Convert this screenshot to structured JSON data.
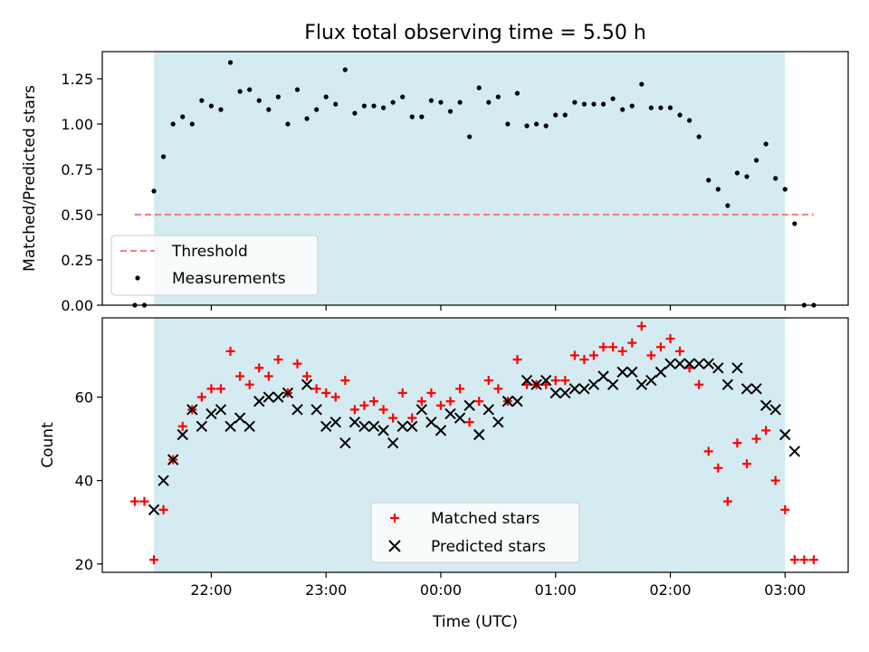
{
  "title": "Flux total observing time = 5.50 h",
  "colors": {
    "shade": "#d4ebf1",
    "threshold": "#f08080",
    "measurement": "#000000",
    "matched": "#ff0000",
    "predicted": "#000000"
  },
  "chart_data": [
    {
      "type": "scatter",
      "ylabel": "Matched/Predicted stars",
      "ylim": [
        0,
        1.4
      ],
      "yticks": [
        0.0,
        0.25,
        0.5,
        0.75,
        1.0,
        1.25
      ],
      "ytick_labels": [
        "0.00",
        "0.25",
        "0.50",
        "0.75",
        "1.00",
        "1.25"
      ],
      "xlim_hours": [
        -2.95,
        3.55
      ],
      "shaded_interval": [
        "21:30",
        "03:00"
      ],
      "threshold": {
        "name": "Threshold",
        "value": 0.5,
        "x_range": [
          "21:20",
          "03:15"
        ]
      },
      "legend": {
        "placement": "lower left",
        "entries": [
          "Threshold",
          "Measurements"
        ]
      },
      "series": [
        {
          "name": "Measurements",
          "x": [
            -2.6667,
            -2.5833,
            -2.5,
            -2.4167,
            -2.3333,
            -2.25,
            -2.1667,
            -2.0833,
            -2.0,
            -1.9167,
            -1.8333,
            -1.75,
            -1.6667,
            -1.5833,
            -1.5,
            -1.4167,
            -1.3333,
            -1.25,
            -1.1667,
            -1.0833,
            -1.0,
            -0.9167,
            -0.8333,
            -0.75,
            -0.6667,
            -0.5833,
            -0.5,
            -0.4167,
            -0.3333,
            -0.25,
            -0.1667,
            -0.0833,
            0.0,
            0.0833,
            0.1667,
            0.25,
            0.3333,
            0.4167,
            0.5,
            0.5833,
            0.6667,
            0.75,
            0.8333,
            0.9167,
            1.0,
            1.0833,
            1.1667,
            1.25,
            1.3333,
            1.4167,
            1.5,
            1.5833,
            1.6667,
            1.75,
            1.8333,
            1.9167,
            2.0,
            2.0833,
            2.1667,
            2.25,
            2.3333,
            2.4167,
            2.5,
            2.5833,
            2.6667,
            2.75,
            2.8333,
            2.9167,
            3.0,
            3.0833,
            3.1667,
            3.25
          ],
          "y": [
            0.0,
            0.0,
            0.63,
            0.82,
            1.0,
            1.04,
            1.0,
            1.13,
            1.1,
            1.08,
            1.34,
            1.18,
            1.19,
            1.13,
            1.08,
            1.15,
            1.0,
            1.19,
            1.03,
            1.08,
            1.15,
            1.11,
            1.3,
            1.06,
            1.1,
            1.1,
            1.09,
            1.12,
            1.15,
            1.04,
            1.04,
            1.13,
            1.12,
            1.07,
            1.12,
            0.93,
            1.2,
            1.12,
            1.15,
            1.0,
            1.17,
            0.99,
            1.0,
            0.99,
            1.05,
            1.05,
            1.12,
            1.11,
            1.11,
            1.11,
            1.14,
            1.08,
            1.1,
            1.22,
            1.09,
            1.09,
            1.09,
            1.05,
            1.02,
            0.93,
            0.69,
            0.64,
            0.55,
            0.73,
            0.71,
            0.8,
            0.89,
            0.7,
            0.64,
            0.45,
            0.0,
            0.0
          ]
        }
      ]
    },
    {
      "type": "scatter",
      "xlabel": "Time (UTC)",
      "ylabel": "Count",
      "ylim": [
        18,
        79
      ],
      "yticks": [
        20,
        40,
        60
      ],
      "ytick_labels": [
        "20",
        "40",
        "60"
      ],
      "xlim_hours": [
        -2.95,
        3.55
      ],
      "xticks_hours": [
        -2,
        -1,
        0,
        1,
        2,
        3
      ],
      "xtick_labels": [
        "22:00",
        "23:00",
        "00:00",
        "01:00",
        "02:00",
        "03:00"
      ],
      "shaded_interval": [
        "21:30",
        "03:00"
      ],
      "legend": {
        "placement": "lower center",
        "entries": [
          "Matched stars",
          "Predicted stars"
        ]
      },
      "series": [
        {
          "name": "Matched stars",
          "marker": "plus",
          "x": [
            -2.6667,
            -2.5833,
            -2.5,
            -2.4167,
            -2.3333,
            -2.25,
            -2.1667,
            -2.0833,
            -2.0,
            -1.9167,
            -1.8333,
            -1.75,
            -1.6667,
            -1.5833,
            -1.5,
            -1.4167,
            -1.3333,
            -1.25,
            -1.1667,
            -1.0833,
            -1.0,
            -0.9167,
            -0.8333,
            -0.75,
            -0.6667,
            -0.5833,
            -0.5,
            -0.4167,
            -0.3333,
            -0.25,
            -0.1667,
            -0.0833,
            0.0,
            0.0833,
            0.1667,
            0.25,
            0.3333,
            0.4167,
            0.5,
            0.5833,
            0.6667,
            0.75,
            0.8333,
            0.9167,
            1.0,
            1.0833,
            1.1667,
            1.25,
            1.3333,
            1.4167,
            1.5,
            1.5833,
            1.6667,
            1.75,
            1.8333,
            1.9167,
            2.0,
            2.0833,
            2.1667,
            2.25,
            2.3333,
            2.4167,
            2.5,
            2.5833,
            2.6667,
            2.75,
            2.8333,
            2.9167,
            3.0,
            3.0833,
            3.1667,
            3.25
          ],
          "y": [
            35,
            35,
            21,
            33,
            45,
            53,
            57,
            60,
            62,
            62,
            71,
            65,
            63,
            67,
            65,
            69,
            61,
            68,
            65,
            62,
            61,
            60,
            64,
            57,
            58,
            59,
            57,
            55,
            61,
            55,
            59,
            61,
            58,
            59,
            62,
            54,
            59,
            64,
            62,
            59,
            69,
            63,
            63,
            63,
            64,
            64,
            70,
            69,
            70,
            72,
            72,
            71,
            73,
            77,
            70,
            72,
            74,
            71,
            67,
            63,
            47,
            43,
            35,
            49,
            44,
            50,
            52,
            40,
            33,
            21,
            21,
            21
          ]
        },
        {
          "name": "Predicted stars",
          "marker": "x",
          "x": [
            -2.5,
            -2.4167,
            -2.3333,
            -2.25,
            -2.1667,
            -2.0833,
            -2.0,
            -1.9167,
            -1.8333,
            -1.75,
            -1.6667,
            -1.5833,
            -1.5,
            -1.4167,
            -1.3333,
            -1.25,
            -1.1667,
            -1.0833,
            -1.0,
            -0.9167,
            -0.8333,
            -0.75,
            -0.6667,
            -0.5833,
            -0.5,
            -0.4167,
            -0.3333,
            -0.25,
            -0.1667,
            -0.0833,
            0.0,
            0.0833,
            0.1667,
            0.25,
            0.3333,
            0.4167,
            0.5,
            0.5833,
            0.6667,
            0.75,
            0.8333,
            0.9167,
            1.0,
            1.0833,
            1.1667,
            1.25,
            1.3333,
            1.4167,
            1.5,
            1.5833,
            1.6667,
            1.75,
            1.8333,
            1.9167,
            2.0,
            2.0833,
            2.1667,
            2.25,
            2.3333,
            2.4167,
            2.5,
            2.5833,
            2.6667,
            2.75,
            2.8333,
            2.9167,
            3.0,
            3.0833
          ],
          "y": [
            33,
            40,
            45,
            51,
            57,
            53,
            56,
            57,
            53,
            55,
            53,
            59,
            60,
            60,
            61,
            57,
            63,
            57,
            53,
            54,
            49,
            54,
            53,
            53,
            52,
            49,
            53,
            53,
            57,
            54,
            52,
            56,
            55,
            58,
            51,
            57,
            54,
            59,
            59,
            64,
            63,
            64,
            61,
            61,
            62,
            62,
            63,
            65,
            63,
            66,
            66,
            63,
            64,
            66,
            68,
            68,
            68,
            68,
            68,
            67,
            63,
            67,
            62,
            62,
            58,
            57,
            51,
            47
          ]
        }
      ]
    }
  ]
}
